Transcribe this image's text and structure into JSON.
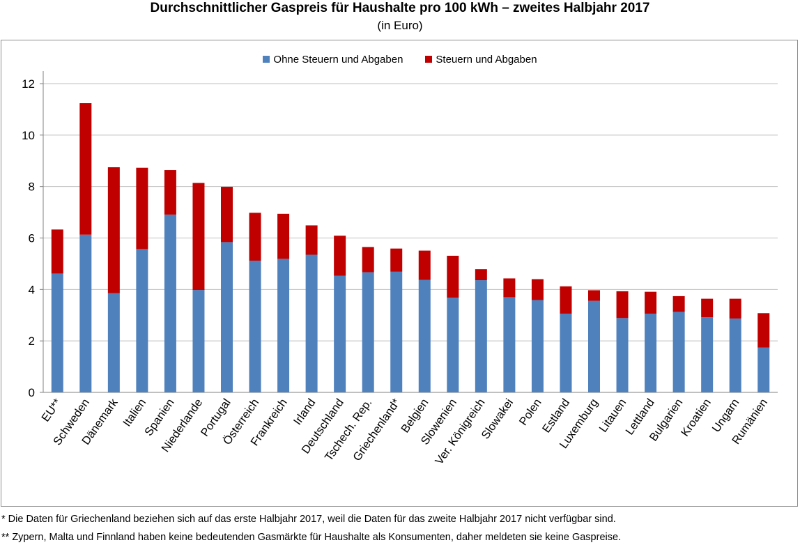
{
  "chart_data": {
    "type": "bar",
    "stacked": true,
    "title": "Durchschnittlicher Gaspreis für Haushalte pro 100 kWh – zweites Halbjahr 2017",
    "subtitle": "(in Euro)",
    "categories": [
      "EU**",
      "Schweden",
      "Dänemark",
      "Italien",
      "Spanien",
      "Niederlande",
      "Portugal",
      "Österreich",
      "Frankreich",
      "Irland",
      "Deutschland",
      "Tschech. Rep.",
      "Griechenland*",
      "Belgien",
      "Slowenien",
      "Ver. Königreich",
      "Slowakei",
      "Polen",
      "Estland",
      "Luxemburg",
      "Litauen",
      "Lettland",
      "Bulgarien",
      "Kroatien",
      "Ungarn",
      "Rumänien"
    ],
    "series": [
      {
        "name": "Ohne Steuern und Abgaben",
        "color": "#4f81bd",
        "values": [
          4.62,
          6.13,
          3.86,
          5.57,
          6.91,
          3.98,
          5.84,
          5.12,
          5.19,
          5.35,
          4.53,
          4.67,
          4.69,
          4.37,
          3.68,
          4.36,
          3.7,
          3.59,
          3.06,
          3.56,
          2.89,
          3.06,
          3.13,
          2.92,
          2.87,
          1.74
        ]
      },
      {
        "name": "Steuern und Abgaben",
        "color": "#c00000",
        "values": [
          1.71,
          5.11,
          4.89,
          3.16,
          1.73,
          4.16,
          2.15,
          1.86,
          1.75,
          1.14,
          1.56,
          0.98,
          0.9,
          1.14,
          1.63,
          0.43,
          0.73,
          0.81,
          1.06,
          0.41,
          1.04,
          0.85,
          0.61,
          0.72,
          0.77,
          1.34
        ]
      }
    ],
    "ylim": [
      0,
      12
    ],
    "yticks": [
      0,
      2,
      4,
      6,
      8,
      10,
      12
    ],
    "grid": true,
    "legend_position": "top-center"
  },
  "footnotes": [
    "* Die Daten für Griechenland beziehen sich auf das erste Halbjahr 2017, weil die Daten für das zweite Halbjahr 2017 nicht verfügbar sind.",
    "**  Zypern, Malta und Finnland haben keine bedeutenden Gasmärkte für Haushalte als Konsumenten, daher meldeten sie keine Gaspreise."
  ]
}
